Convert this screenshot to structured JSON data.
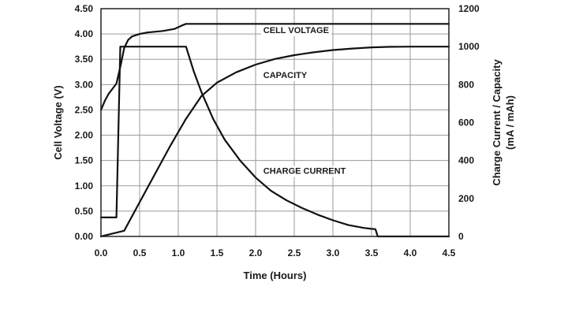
{
  "chart_data": {
    "type": "line",
    "xlabel": "Time (Hours)",
    "ylabel_left": "Cell Voltage (V)",
    "ylabel_right_line1": "Charge Current / Capacity",
    "ylabel_right_line2": "(mA / mAh)",
    "xlim": [
      0,
      4.5
    ],
    "ylim_left": [
      0,
      4.5
    ],
    "ylim_right": [
      0,
      1200
    ],
    "x_ticks": [
      "0.0",
      "0.5",
      "1.0",
      "1.5",
      "2.0",
      "2.5",
      "3.0",
      "3.5",
      "4.0",
      "4.5"
    ],
    "y_left_ticks": [
      "0.00",
      "0.50",
      "1.00",
      "1.50",
      "2.00",
      "2.50",
      "3.00",
      "3.50",
      "4.00",
      "4.50"
    ],
    "y_right_ticks": [
      "0",
      "200",
      "400",
      "600",
      "800",
      "1000",
      "1200"
    ],
    "grid": true,
    "series": [
      {
        "name": "CELL VOLTAGE",
        "axis": "left",
        "points": [
          [
            0,
            2.5
          ],
          [
            0.05,
            2.68
          ],
          [
            0.1,
            2.82
          ],
          [
            0.15,
            2.92
          ],
          [
            0.2,
            3.02
          ],
          [
            0.25,
            3.35
          ],
          [
            0.3,
            3.72
          ],
          [
            0.35,
            3.88
          ],
          [
            0.4,
            3.95
          ],
          [
            0.5,
            4.0
          ],
          [
            0.6,
            4.03
          ],
          [
            0.8,
            4.06
          ],
          [
            0.95,
            4.1
          ],
          [
            1.05,
            4.17
          ],
          [
            1.1,
            4.2
          ],
          [
            4.5,
            4.2
          ]
        ],
        "label_at": [
          2.1,
          4.02
        ]
      },
      {
        "name": "CAPACITY",
        "axis": "right",
        "points": [
          [
            0,
            0
          ],
          [
            0.1,
            10
          ],
          [
            0.3,
            30
          ],
          [
            0.5,
            180
          ],
          [
            0.7,
            330
          ],
          [
            0.9,
            480
          ],
          [
            1.1,
            620
          ],
          [
            1.3,
            740
          ],
          [
            1.5,
            810
          ],
          [
            1.75,
            865
          ],
          [
            2.0,
            905
          ],
          [
            2.25,
            935
          ],
          [
            2.5,
            955
          ],
          [
            2.75,
            970
          ],
          [
            3.0,
            982
          ],
          [
            3.25,
            990
          ],
          [
            3.5,
            996
          ],
          [
            3.75,
            999
          ],
          [
            4.0,
            1000
          ],
          [
            4.5,
            1000
          ]
        ],
        "label_at": [
          2.1,
          835
        ]
      },
      {
        "name": "CHARGE CURRENT",
        "axis": "right",
        "points": [
          [
            0,
            100
          ],
          [
            0.2,
            100
          ],
          [
            0.25,
            1000
          ],
          [
            1.1,
            1000
          ],
          [
            1.2,
            870
          ],
          [
            1.3,
            760
          ],
          [
            1.45,
            620
          ],
          [
            1.6,
            510
          ],
          [
            1.8,
            400
          ],
          [
            2.0,
            310
          ],
          [
            2.2,
            240
          ],
          [
            2.4,
            190
          ],
          [
            2.6,
            150
          ],
          [
            2.8,
            115
          ],
          [
            3.0,
            85
          ],
          [
            3.2,
            60
          ],
          [
            3.4,
            45
          ],
          [
            3.5,
            40
          ],
          [
            3.55,
            38
          ],
          [
            3.58,
            0
          ],
          [
            4.5,
            0
          ]
        ],
        "label_at": [
          2.1,
          330
        ]
      }
    ]
  }
}
